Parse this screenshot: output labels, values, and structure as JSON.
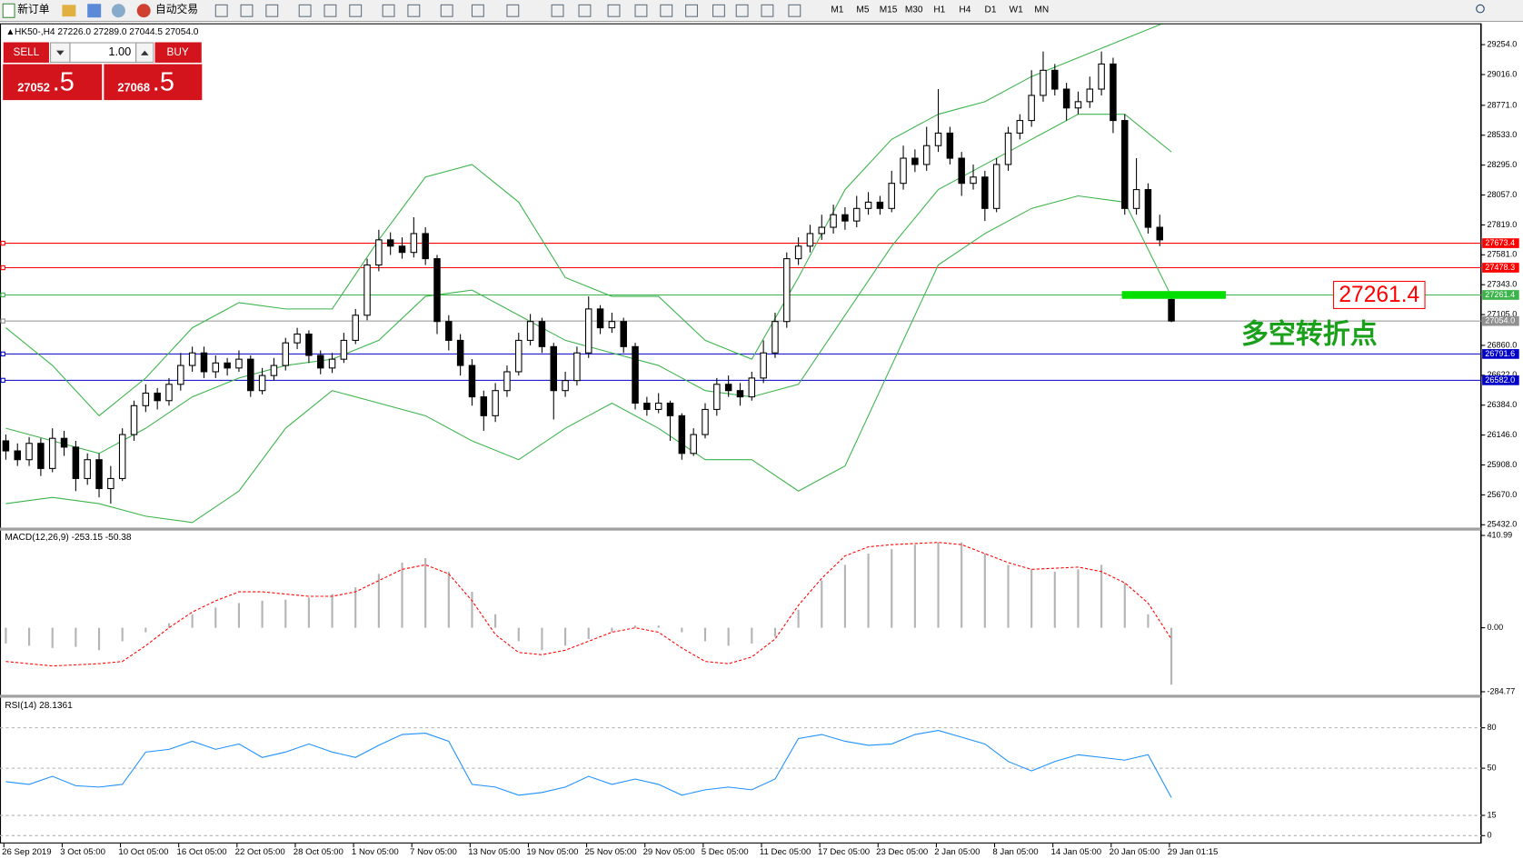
{
  "toolbar": {
    "new_order": "新订单",
    "auto_trading": "自动交易",
    "timeframes": [
      "M1",
      "M5",
      "M15",
      "M30",
      "H1",
      "H4",
      "D1",
      "W1",
      "MN"
    ]
  },
  "trade_panel": {
    "sell": "SELL",
    "lots": "1.00",
    "buy": "BUY",
    "bid_main": "27052",
    "bid_frac": ".5",
    "ask_main": "27068",
    "ask_frac": ".5"
  },
  "chart_data": [
    {
      "type": "candlestick",
      "title": "HK50-,H4 27226.0 27289.0 27044.5 27054.0",
      "open": [
        26100,
        26020,
        25950,
        26080,
        25880,
        26120,
        26050,
        25800,
        25950,
        25720,
        25800,
        26150,
        26380,
        26480,
        26420,
        26550,
        26700,
        26800,
        26650,
        26720,
        26680,
        26750,
        26500,
        26620,
        26700,
        26880,
        26950,
        26780,
        26680,
        26750,
        26900,
        27100,
        27500,
        27700,
        27650,
        27600,
        27750,
        27550,
        27050,
        26900,
        26700,
        26450,
        26300,
        26500,
        26650,
        26900,
        27050,
        26850,
        26500,
        26580,
        26800,
        27150,
        27000,
        27050,
        26850,
        26400,
        26350,
        26400,
        26300,
        26000,
        26150,
        26350,
        26550,
        26500,
        26450,
        26600,
        26800,
        27050,
        27550,
        27650,
        27750,
        27800,
        27900,
        27850,
        27950,
        28000,
        27950,
        28150,
        28350,
        28300,
        28450,
        28550,
        28350,
        28150,
        28200,
        27950,
        28300,
        28550,
        28650,
        28850,
        29050,
        28900,
        28750,
        28800,
        28900,
        29100,
        28650,
        27950,
        28100,
        27800,
        27226
      ],
      "high": [
        26150,
        26080,
        26130,
        26120,
        26200,
        26180,
        26100,
        26000,
        26000,
        25900,
        26200,
        26420,
        26550,
        26520,
        26600,
        26800,
        26850,
        26850,
        26780,
        26760,
        26820,
        26780,
        26680,
        26760,
        26920,
        27000,
        26980,
        26820,
        26800,
        26960,
        27150,
        27550,
        27780,
        27760,
        27720,
        27880,
        27800,
        27580,
        27100,
        26950,
        26750,
        26500,
        26560,
        26700,
        26960,
        27110,
        27080,
        26880,
        26650,
        26850,
        27250,
        27180,
        27120,
        27080,
        26880,
        26450,
        26480,
        26420,
        26320,
        26200,
        26400,
        26600,
        26620,
        26560,
        26650,
        26900,
        27120,
        27600,
        27720,
        27820,
        27900,
        27980,
        27960,
        28050,
        28080,
        28050,
        28250,
        28450,
        28420,
        28600,
        28900,
        28600,
        28400,
        28300,
        28250,
        28350,
        28600,
        28700,
        29050,
        29200,
        29100,
        28950,
        28880,
        29000,
        29200,
        29150,
        28700,
        28350,
        28150,
        27900,
        27289
      ],
      "low": [
        25950,
        25900,
        25900,
        25820,
        25850,
        25980,
        25700,
        25750,
        25650,
        25600,
        25780,
        26100,
        26330,
        26350,
        26380,
        26500,
        26650,
        26600,
        26600,
        26620,
        26650,
        26450,
        26470,
        26580,
        26660,
        26830,
        26720,
        26630,
        26640,
        26720,
        26870,
        27060,
        27450,
        27580,
        27550,
        27560,
        27500,
        26950,
        26820,
        26620,
        26380,
        26180,
        26250,
        26450,
        26620,
        26860,
        26800,
        26270,
        26450,
        26540,
        26760,
        26950,
        26960,
        26800,
        26350,
        26300,
        26320,
        26100,
        25950,
        25980,
        26120,
        26300,
        26450,
        26380,
        26420,
        26560,
        26760,
        27000,
        27500,
        27600,
        27700,
        27750,
        27780,
        27800,
        27900,
        27900,
        27920,
        28100,
        28240,
        28250,
        28400,
        28300,
        28050,
        28100,
        27850,
        27920,
        28250,
        28500,
        28600,
        28800,
        28850,
        28650,
        28700,
        28750,
        28850,
        28550,
        27900,
        27900,
        27750,
        27650,
        27044.5
      ],
      "close": [
        26020,
        25950,
        26080,
        25880,
        26120,
        26050,
        25800,
        25950,
        25720,
        25800,
        26150,
        26380,
        26480,
        26420,
        26550,
        26700,
        26800,
        26650,
        26720,
        26680,
        26750,
        26500,
        26620,
        26700,
        26880,
        26950,
        26780,
        26680,
        26750,
        26900,
        27100,
        27500,
        27700,
        27650,
        27600,
        27750,
        27550,
        27050,
        26900,
        26700,
        26450,
        26300,
        26500,
        26650,
        26900,
        27050,
        26850,
        26500,
        26580,
        26800,
        27150,
        27000,
        27050,
        26850,
        26400,
        26350,
        26400,
        26300,
        26000,
        26150,
        26350,
        26550,
        26500,
        26450,
        26600,
        26800,
        27050,
        27550,
        27650,
        27750,
        27800,
        27900,
        27850,
        27950,
        28000,
        27950,
        28150,
        28350,
        28300,
        28450,
        28550,
        28350,
        28150,
        28200,
        27950,
        28300,
        28550,
        28650,
        28850,
        29050,
        28900,
        28750,
        28800,
        28900,
        29100,
        28650,
        27950,
        28100,
        27800,
        27700,
        27054
      ],
      "bollinger": {
        "color": "#3cb44b",
        "upper": [
          27000,
          26700,
          26300,
          26600,
          27000,
          27200,
          27150,
          27150,
          27700,
          28200,
          28300,
          28000,
          27400,
          27250,
          27250,
          26900,
          26750,
          27400,
          28100,
          28500,
          28700,
          28800,
          29000,
          29150,
          29300,
          29450
        ],
        "middle": [
          26200,
          26100,
          26000,
          26200,
          26450,
          26600,
          26700,
          26750,
          26900,
          27250,
          27300,
          27100,
          26900,
          26800,
          26700,
          26500,
          26450,
          26550,
          27100,
          27650,
          28100,
          28300,
          28500,
          28700,
          28700,
          28400
        ],
        "lower": [
          25600,
          25650,
          25600,
          25500,
          25450,
          25700,
          26200,
          26500,
          26400,
          26300,
          26100,
          25950,
          26200,
          26400,
          26200,
          25950,
          25950,
          25700,
          25900,
          26700,
          27500,
          27750,
          27950,
          28050,
          28000,
          27250
        ]
      },
      "levels": [
        {
          "value": 27673.4,
          "color": "#ff0000"
        },
        {
          "value": 27478.3,
          "color": "#ff0000"
        },
        {
          "value": 27261.4,
          "color": "#3cb44b"
        },
        {
          "value": 27054,
          "label": "27054.0",
          "color": "#909090"
        },
        {
          "value": 26791.6,
          "color": "#0000c8"
        },
        {
          "value": 26582,
          "label": "26582.0",
          "color": "#0000c8"
        }
      ],
      "callout": 27261.4,
      "callout_color": "#ff0000",
      "marker_color": "#00e000",
      "note": "多空转折点",
      "note_color": "#1aa01a",
      "ylim": [
        25409,
        29416
      ],
      "yticks": [
        {
          "value": 29254,
          "label": "29254.0"
        },
        {
          "value": 29016,
          "label": "29016.0"
        },
        {
          "value": 28771,
          "label": "28771.0"
        },
        {
          "value": 28533,
          "label": "28533.0"
        },
        {
          "value": 28295,
          "label": "28295.0"
        },
        {
          "value": 28057,
          "label": "28057.0"
        },
        {
          "value": 27819,
          "label": "27819.0"
        },
        {
          "value": 27581,
          "label": "27581.0"
        },
        {
          "value": 27343,
          "label": "27343.0"
        },
        {
          "value": 27105,
          "label": "27105.0"
        },
        {
          "value": 26860,
          "label": "26860.0"
        },
        {
          "value": 26622,
          "label": "26622.0"
        },
        {
          "value": 26384,
          "label": "26384.0"
        },
        {
          "value": 26146,
          "label": "26146.0"
        },
        {
          "value": 25908,
          "label": "25908.0"
        },
        {
          "value": 25670,
          "label": "25670.0"
        },
        {
          "value": 25432,
          "label": "25432.0"
        }
      ],
      "x_labels": [
        "26 Sep 2019",
        "3 Oct 05:00",
        "10 Oct 05:00",
        "16 Oct 05:00",
        "22 Oct 05:00",
        "28 Oct 05:00",
        "1 Nov 05:00",
        "7 Nov 05:00",
        "13 Nov 05:00",
        "19 Nov 05:00",
        "25 Nov 05:00",
        "29 Nov 05:00",
        "5 Dec 05:00",
        "11 Dec 05:00",
        "17 Dec 05:00",
        "23 Dec 05:00",
        "2 Jan 05:00",
        "8 Jan 05:00",
        "14 Jan 05:00",
        "20 Jan 05:00",
        "29 Jan 01:15"
      ]
    },
    {
      "type": "macd",
      "title": "MACD(12,26,9) -253.15 -50.38",
      "color": "#b4b4b4",
      "signal_color": "#ff0000",
      "values": [
        -70,
        -80,
        -90,
        -85,
        -100,
        -60,
        -20,
        20,
        60,
        90,
        110,
        120,
        125,
        135,
        150,
        180,
        240,
        290,
        310,
        250,
        160,
        60,
        -60,
        -100,
        -80,
        -50,
        -20,
        10,
        10,
        -20,
        -60,
        -80,
        -70,
        -40,
        80,
        210,
        280,
        330,
        350,
        370,
        380,
        380,
        330,
        280,
        260,
        250,
        260,
        280,
        200,
        60,
        -253.15
      ],
      "signal": [
        -150,
        -160,
        -170,
        -165,
        -160,
        -150,
        -80,
        0,
        70,
        120,
        160,
        160,
        150,
        140,
        140,
        160,
        210,
        260,
        280,
        240,
        120,
        -30,
        -110,
        -120,
        -100,
        -60,
        -20,
        0,
        -20,
        -90,
        -150,
        -160,
        -130,
        -50,
        100,
        220,
        320,
        360,
        370,
        375,
        380,
        370,
        330,
        290,
        260,
        265,
        270,
        250,
        200,
        110,
        -50.38
      ],
      "ylim": [
        -294,
        424
      ],
      "yticks": [
        410.99,
        {
          "value": 0,
          "label": "0.00"
        },
        -284.77
      ]
    },
    {
      "type": "line",
      "title": "RSI(14) 28.1361",
      "color": "#1e90ff",
      "values": [
        40,
        38,
        44,
        37,
        36,
        38,
        62,
        64,
        70,
        64,
        68,
        58,
        62,
        68,
        62,
        58,
        67,
        75,
        76,
        70,
        38,
        36,
        30,
        32,
        36,
        44,
        38,
        42,
        38,
        30,
        34,
        36,
        34,
        42,
        72,
        75,
        70,
        67,
        68,
        75,
        78,
        73,
        68,
        55,
        48,
        55,
        60,
        58,
        56,
        60,
        28.1361
      ],
      "ylim": [
        -5.8,
        102.3
      ],
      "yticks": [
        80,
        50,
        15,
        0
      ]
    }
  ]
}
